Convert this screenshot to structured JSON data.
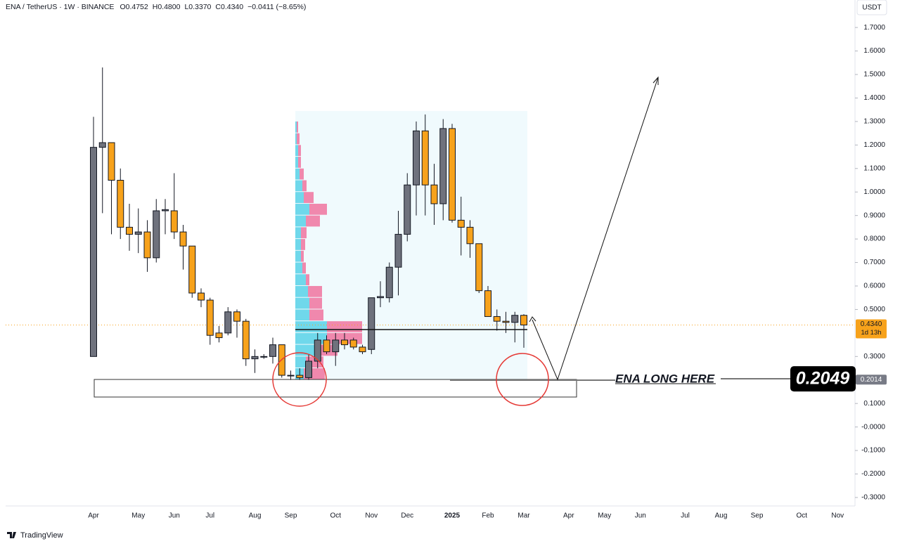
{
  "chart_data": {
    "type": "candlestick",
    "title": "ENA / TetherUS · 1W · BINANCE",
    "ohlc_texts": [
      "O0.4752",
      "H0.4800",
      "L0.3370",
      "C0.4340",
      "−0.0411 (−8.65%)"
    ],
    "currency": "USDT",
    "categories": [
      "Apr",
      null,
      null,
      null,
      null,
      "May",
      null,
      null,
      null,
      "Jun",
      null,
      null,
      null,
      "Jul",
      null,
      null,
      null,
      null,
      "Aug",
      null,
      null,
      null,
      "Sep",
      null,
      null,
      null,
      null,
      "Oct",
      null,
      null,
      null,
      "Nov",
      null,
      null,
      null,
      "Dec",
      null,
      null,
      null,
      null,
      "2025",
      null,
      null,
      null,
      "Feb",
      null,
      null,
      null,
      "Mar",
      null,
      null,
      null,
      null,
      "Apr",
      null,
      null,
      null,
      "May",
      null,
      null,
      null,
      "Jun",
      null,
      null,
      null,
      null,
      "Jul",
      null,
      null,
      null,
      "Aug",
      null,
      null,
      null,
      "Sep",
      null,
      null,
      null,
      null,
      "Oct",
      null,
      null,
      null,
      "Nov"
    ],
    "open": [
      0.3,
      1.19,
      1.21,
      1.05,
      0.85,
      0.82,
      0.83,
      0.72,
      0.92,
      0.92,
      0.83,
      0.77,
      0.57,
      0.54,
      0.4,
      0.4,
      0.49,
      0.45,
      0.29,
      0.3,
      0.3,
      0.35,
      0.22,
      0.22,
      0.21,
      0.28,
      0.37,
      0.32,
      0.37,
      0.37,
      0.34,
      0.33,
      0.55,
      0.55,
      0.68,
      0.82,
      1.03,
      1.26,
      1.03,
      0.95,
      1.27,
      0.88,
      0.85,
      0.78,
      0.58,
      0.47,
      0.45,
      0.445,
      0.4752,
      null,
      null,
      null,
      null,
      null,
      null,
      null,
      null,
      null,
      null,
      null,
      null,
      null,
      null,
      null,
      null,
      null,
      null,
      null,
      null,
      null,
      null,
      null,
      null,
      null,
      null,
      null,
      null,
      null,
      null,
      null,
      null,
      null,
      null,
      null
    ],
    "high": [
      1.32,
      1.53,
      1.21,
      1.1,
      0.95,
      0.93,
      0.88,
      0.97,
      0.97,
      1.08,
      0.86,
      0.77,
      0.59,
      0.55,
      0.43,
      0.51,
      0.5,
      0.46,
      0.33,
      0.31,
      0.38,
      0.35,
      0.24,
      0.25,
      0.31,
      0.4,
      0.39,
      0.4,
      0.4,
      0.38,
      0.35,
      0.55,
      0.62,
      0.7,
      0.92,
      1.08,
      1.3,
      1.33,
      1.12,
      1.31,
      1.29,
      0.98,
      0.88,
      0.78,
      0.6,
      0.5,
      0.49,
      0.49,
      0.48,
      null,
      null,
      null,
      null,
      null,
      null,
      null,
      null,
      null,
      null,
      null,
      null,
      null,
      null,
      null,
      null,
      null,
      null,
      null,
      null,
      null,
      null,
      null,
      null,
      null,
      null,
      null,
      null,
      null,
      null,
      null,
      null,
      null,
      null,
      null
    ],
    "low": [
      0.3,
      0.91,
      0.82,
      0.8,
      0.75,
      0.74,
      0.66,
      0.7,
      0.82,
      0.8,
      0.67,
      0.55,
      0.51,
      0.35,
      0.36,
      0.39,
      0.38,
      0.26,
      0.23,
      0.29,
      0.27,
      0.21,
      0.2,
      0.2,
      0.2,
      0.25,
      0.31,
      0.26,
      0.33,
      0.33,
      0.31,
      0.31,
      0.51,
      0.53,
      0.56,
      0.79,
      0.9,
      0.9,
      0.86,
      0.88,
      0.87,
      0.73,
      0.72,
      0.57,
      0.47,
      0.41,
      0.4,
      0.36,
      0.337,
      null,
      null,
      null,
      null,
      null,
      null,
      null,
      null,
      null,
      null,
      null,
      null,
      null,
      null,
      null,
      null,
      null,
      null,
      null,
      null,
      null,
      null,
      null,
      null,
      null,
      null,
      null,
      null,
      null,
      null,
      null,
      null,
      null,
      null,
      null
    ],
    "close": [
      1.19,
      1.21,
      1.05,
      0.85,
      0.82,
      0.83,
      0.72,
      0.92,
      0.925,
      0.83,
      0.77,
      0.57,
      0.54,
      0.39,
      0.38,
      0.49,
      0.45,
      0.29,
      0.3,
      0.3,
      0.35,
      0.22,
      0.22,
      0.21,
      0.28,
      0.37,
      0.32,
      0.37,
      0.35,
      0.34,
      0.32,
      0.55,
      0.555,
      0.68,
      0.82,
      1.03,
      1.26,
      1.03,
      0.95,
      1.27,
      0.88,
      0.85,
      0.78,
      0.58,
      0.47,
      0.45,
      0.445,
      0.4752,
      0.434,
      null,
      null,
      null,
      null,
      null,
      null,
      null,
      null,
      null,
      null,
      null,
      null,
      null,
      null,
      null,
      null,
      null,
      null,
      null,
      null,
      null,
      null,
      null,
      null,
      null,
      null,
      null,
      null,
      null,
      null,
      null,
      null,
      null,
      null,
      null
    ],
    "up_color": "#6f727d",
    "down_color": "#f7a21b",
    "volume_profile": {
      "levels": [
        0.2,
        0.25,
        0.3,
        0.35,
        0.4,
        0.45,
        0.5,
        0.55,
        0.6,
        0.65,
        0.7,
        0.75,
        0.8,
        0.85,
        0.9,
        0.95,
        1.0,
        1.05,
        1.1,
        1.15,
        1.2,
        1.25
      ],
      "up": [
        12,
        15,
        30,
        45,
        45,
        20,
        20,
        18,
        15,
        10,
        8,
        8,
        8,
        15,
        20,
        12,
        10,
        6,
        4,
        4,
        2,
        2
      ],
      "down": [
        30,
        25,
        30,
        50,
        50,
        20,
        18,
        20,
        5,
        5,
        4,
        6,
        8,
        20,
        25,
        14,
        6,
        6,
        4,
        4,
        4,
        2
      ],
      "up_color": "#4fd0e6",
      "down_color": "#f06292"
    },
    "ylim": [
      -0.336,
      1.817
    ],
    "yticks": [
      {
        "value": 1.7,
        "label": "1.7000"
      },
      {
        "value": 1.6,
        "label": "1.6000"
      },
      {
        "value": 1.5,
        "label": "1.5000"
      },
      {
        "value": 1.4,
        "label": "1.4000"
      },
      {
        "value": 1.3,
        "label": "1.3000"
      },
      {
        "value": 1.2,
        "label": "1.2000"
      },
      {
        "value": 1.1,
        "label": "1.1000"
      },
      {
        "value": 1.0,
        "label": "1.0000"
      },
      {
        "value": 0.9,
        "label": "0.9000"
      },
      {
        "value": 0.8,
        "label": "0.8000"
      },
      {
        "value": 0.7,
        "label": "0.7000"
      },
      {
        "value": 0.6,
        "label": "0.6000"
      },
      {
        "value": 0.5,
        "label": "0.5000"
      },
      {
        "value": 0.3,
        "label": "0.3000"
      },
      {
        "value": 0.1,
        "label": "0.1000"
      },
      {
        "value": 0,
        "label": "-0.0000"
      },
      {
        "value": -0.1,
        "label": "-0.1000"
      },
      {
        "value": -0.2,
        "label": "-0.2000"
      },
      {
        "value": -0.3,
        "label": "-0.3000"
      }
    ],
    "last_price": {
      "value": 0.434,
      "label": "0.4340"
    },
    "countdown": "1d 13h",
    "level_price": 0.2014,
    "target_price": 0.2049,
    "annotation": "ENA LONG HERE",
    "brand": "TradingView"
  }
}
